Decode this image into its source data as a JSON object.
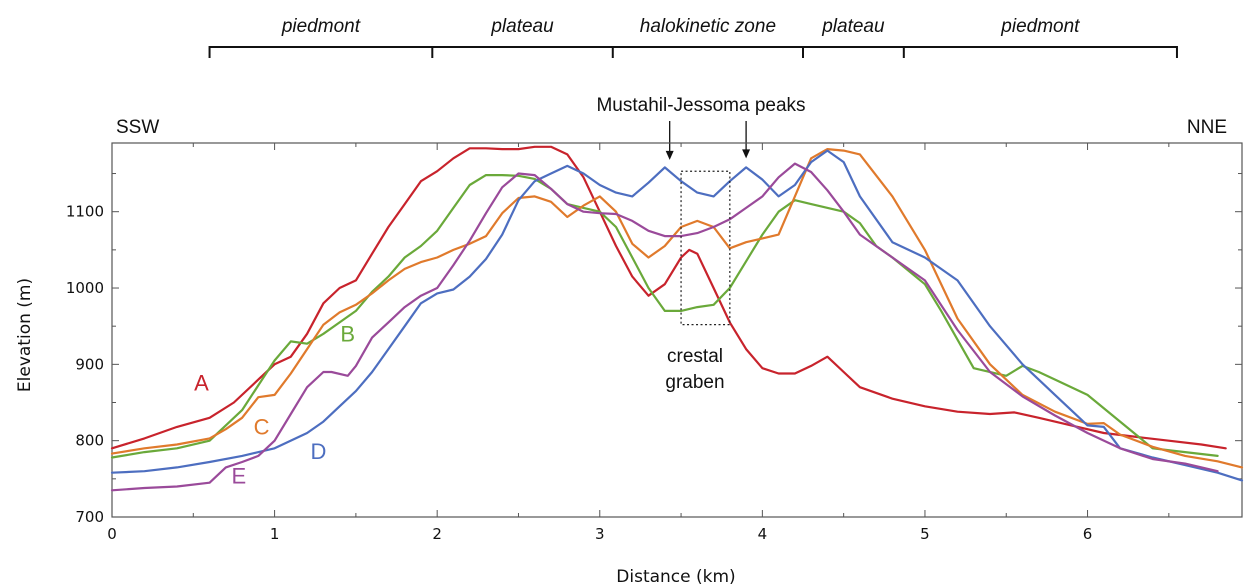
{
  "chart_data": {
    "type": "line",
    "xlabel": "Distance (km)",
    "ylabel": "Elevation (m)",
    "xlim": [
      0,
      6.95
    ],
    "ylim": [
      700,
      1190
    ],
    "xticks": [
      0,
      1,
      2,
      3,
      4,
      5,
      6
    ],
    "yticks": [
      700,
      800,
      900,
      1000,
      1100
    ],
    "grid": false,
    "direction_left": "SSW",
    "direction_right": "NNE",
    "zones": [
      {
        "label": "piedmont",
        "x0": 0.6,
        "x1": 1.97
      },
      {
        "label": "plateau",
        "x0": 1.97,
        "x1": 3.08
      },
      {
        "label": "halokinetic zone",
        "x0": 3.08,
        "x1": 4.25
      },
      {
        "label": "plateau",
        "x0": 4.25,
        "x1": 4.87
      },
      {
        "label": "piedmont",
        "x0": 4.87,
        "x1": 6.55
      }
    ],
    "annotations": {
      "peaks_label": "Mustahil-Jessoma peaks",
      "peaks_x": [
        3.43,
        3.9
      ],
      "peaks_y": [
        1160,
        1162
      ],
      "graben_label_line1": "crestal",
      "graben_label_line2": "graben",
      "graben_box": {
        "x0": 3.5,
        "x1": 3.8,
        "y0": 952,
        "y1": 1153
      }
    },
    "series": [
      {
        "name": "A",
        "color": "#c8232c",
        "label_at": [
          0.55,
          866
        ],
        "x": [
          0,
          0.2,
          0.4,
          0.6,
          0.75,
          0.9,
          1.0,
          1.1,
          1.2,
          1.3,
          1.4,
          1.5,
          1.6,
          1.7,
          1.8,
          1.9,
          2.0,
          2.1,
          2.2,
          2.3,
          2.4,
          2.5,
          2.6,
          2.7,
          2.8,
          2.9,
          3.0,
          3.1,
          3.2,
          3.3,
          3.4,
          3.5,
          3.55,
          3.6,
          3.7,
          3.8,
          3.9,
          4.0,
          4.1,
          4.2,
          4.3,
          4.4,
          4.5,
          4.6,
          4.8,
          5.0,
          5.2,
          5.4,
          5.55,
          5.7,
          5.9,
          6.1,
          6.3,
          6.5,
          6.7,
          6.85
        ],
        "y": [
          790,
          803,
          818,
          830,
          850,
          880,
          900,
          910,
          940,
          980,
          1000,
          1010,
          1045,
          1080,
          1110,
          1140,
          1153,
          1170,
          1183,
          1183,
          1182,
          1182,
          1185,
          1185,
          1175,
          1145,
          1100,
          1055,
          1015,
          990,
          1005,
          1040,
          1050,
          1045,
          1000,
          955,
          920,
          895,
          888,
          888,
          898,
          910,
          890,
          870,
          855,
          845,
          838,
          835,
          837,
          830,
          820,
          810,
          805,
          800,
          795,
          790
        ]
      },
      {
        "name": "B",
        "color": "#6aa93a",
        "label_at": [
          1.45,
          930
        ],
        "x": [
          0,
          0.2,
          0.4,
          0.6,
          0.8,
          1.0,
          1.1,
          1.2,
          1.3,
          1.4,
          1.5,
          1.6,
          1.7,
          1.8,
          1.9,
          2.0,
          2.1,
          2.2,
          2.3,
          2.4,
          2.5,
          2.6,
          2.7,
          2.8,
          2.9,
          3.0,
          3.1,
          3.2,
          3.3,
          3.4,
          3.5,
          3.6,
          3.7,
          3.8,
          3.9,
          4.0,
          4.1,
          4.2,
          4.3,
          4.5,
          4.6,
          4.7,
          4.8,
          5.0,
          5.1,
          5.3,
          5.5,
          5.6,
          5.7,
          5.9,
          6.0,
          6.2,
          6.4,
          6.6,
          6.8
        ],
        "y": [
          778,
          785,
          790,
          800,
          840,
          905,
          930,
          927,
          940,
          955,
          970,
          995,
          1015,
          1040,
          1055,
          1075,
          1105,
          1135,
          1148,
          1148,
          1147,
          1143,
          1130,
          1110,
          1105,
          1100,
          1080,
          1040,
          1000,
          970,
          970,
          975,
          978,
          1000,
          1035,
          1070,
          1100,
          1115,
          1110,
          1100,
          1085,
          1055,
          1040,
          1005,
          970,
          895,
          885,
          898,
          890,
          870,
          860,
          825,
          790,
          785,
          780
        ]
      },
      {
        "name": "C",
        "color": "#e07a2c",
        "label_at": [
          0.92,
          808
        ],
        "x": [
          0,
          0.2,
          0.4,
          0.6,
          0.7,
          0.8,
          0.9,
          1.0,
          1.1,
          1.2,
          1.3,
          1.4,
          1.5,
          1.6,
          1.7,
          1.8,
          1.9,
          2.0,
          2.1,
          2.2,
          2.3,
          2.4,
          2.5,
          2.6,
          2.7,
          2.8,
          2.9,
          3.0,
          3.1,
          3.2,
          3.3,
          3.4,
          3.5,
          3.6,
          3.7,
          3.8,
          3.9,
          4.0,
          4.1,
          4.2,
          4.3,
          4.4,
          4.5,
          4.6,
          4.8,
          5.0,
          5.2,
          5.4,
          5.6,
          5.8,
          6.0,
          6.1,
          6.2,
          6.4,
          6.6,
          6.8,
          6.95
        ],
        "y": [
          783,
          790,
          795,
          803,
          815,
          830,
          857,
          860,
          888,
          920,
          952,
          968,
          978,
          993,
          1010,
          1025,
          1034,
          1040,
          1050,
          1058,
          1068,
          1098,
          1118,
          1120,
          1113,
          1093,
          1108,
          1120,
          1100,
          1058,
          1040,
          1055,
          1080,
          1088,
          1080,
          1052,
          1060,
          1065,
          1070,
          1120,
          1170,
          1182,
          1180,
          1175,
          1120,
          1050,
          960,
          900,
          860,
          838,
          822,
          823,
          808,
          792,
          780,
          773,
          765
        ]
      },
      {
        "name": "D",
        "color": "#4d6ec0",
        "label_at": [
          1.27,
          776
        ],
        "x": [
          0,
          0.2,
          0.4,
          0.6,
          0.8,
          1.0,
          1.2,
          1.3,
          1.4,
          1.5,
          1.6,
          1.7,
          1.8,
          1.9,
          2.0,
          2.1,
          2.2,
          2.3,
          2.4,
          2.5,
          2.6,
          2.7,
          2.8,
          2.9,
          3.0,
          3.1,
          3.2,
          3.3,
          3.4,
          3.5,
          3.6,
          3.7,
          3.8,
          3.9,
          4.0,
          4.1,
          4.2,
          4.3,
          4.4,
          4.5,
          4.6,
          4.8,
          5.0,
          5.2,
          5.4,
          5.6,
          5.8,
          6.0,
          6.1,
          6.2,
          6.4,
          6.6,
          6.8,
          6.95
        ],
        "y": [
          758,
          760,
          765,
          772,
          780,
          790,
          810,
          825,
          845,
          865,
          890,
          920,
          950,
          980,
          993,
          998,
          1015,
          1038,
          1070,
          1115,
          1140,
          1150,
          1160,
          1150,
          1135,
          1125,
          1120,
          1138,
          1158,
          1140,
          1125,
          1120,
          1140,
          1158,
          1142,
          1120,
          1135,
          1165,
          1180,
          1165,
          1120,
          1060,
          1040,
          1010,
          950,
          900,
          860,
          820,
          818,
          790,
          778,
          768,
          758,
          748
        ]
      },
      {
        "name": "E",
        "color": "#9a4a9a",
        "label_at": [
          0.78,
          744
        ],
        "x": [
          0,
          0.2,
          0.4,
          0.6,
          0.7,
          0.8,
          0.9,
          1.0,
          1.1,
          1.2,
          1.3,
          1.35,
          1.45,
          1.5,
          1.6,
          1.7,
          1.8,
          1.9,
          2.0,
          2.1,
          2.2,
          2.3,
          2.4,
          2.5,
          2.6,
          2.7,
          2.8,
          2.9,
          3.0,
          3.1,
          3.2,
          3.3,
          3.4,
          3.5,
          3.6,
          3.7,
          3.8,
          3.9,
          4.0,
          4.1,
          4.2,
          4.3,
          4.4,
          4.5,
          4.6,
          4.8,
          5.0,
          5.2,
          5.4,
          5.6,
          5.8,
          6.0,
          6.2,
          6.4,
          6.6,
          6.8
        ],
        "y": [
          735,
          738,
          740,
          745,
          765,
          772,
          780,
          800,
          835,
          870,
          890,
          890,
          885,
          898,
          935,
          955,
          975,
          990,
          1000,
          1030,
          1062,
          1098,
          1132,
          1150,
          1148,
          1130,
          1110,
          1100,
          1098,
          1097,
          1088,
          1075,
          1068,
          1068,
          1072,
          1080,
          1090,
          1105,
          1120,
          1145,
          1163,
          1152,
          1128,
          1100,
          1070,
          1040,
          1010,
          945,
          890,
          858,
          833,
          810,
          790,
          776,
          770,
          760
        ]
      }
    ]
  }
}
